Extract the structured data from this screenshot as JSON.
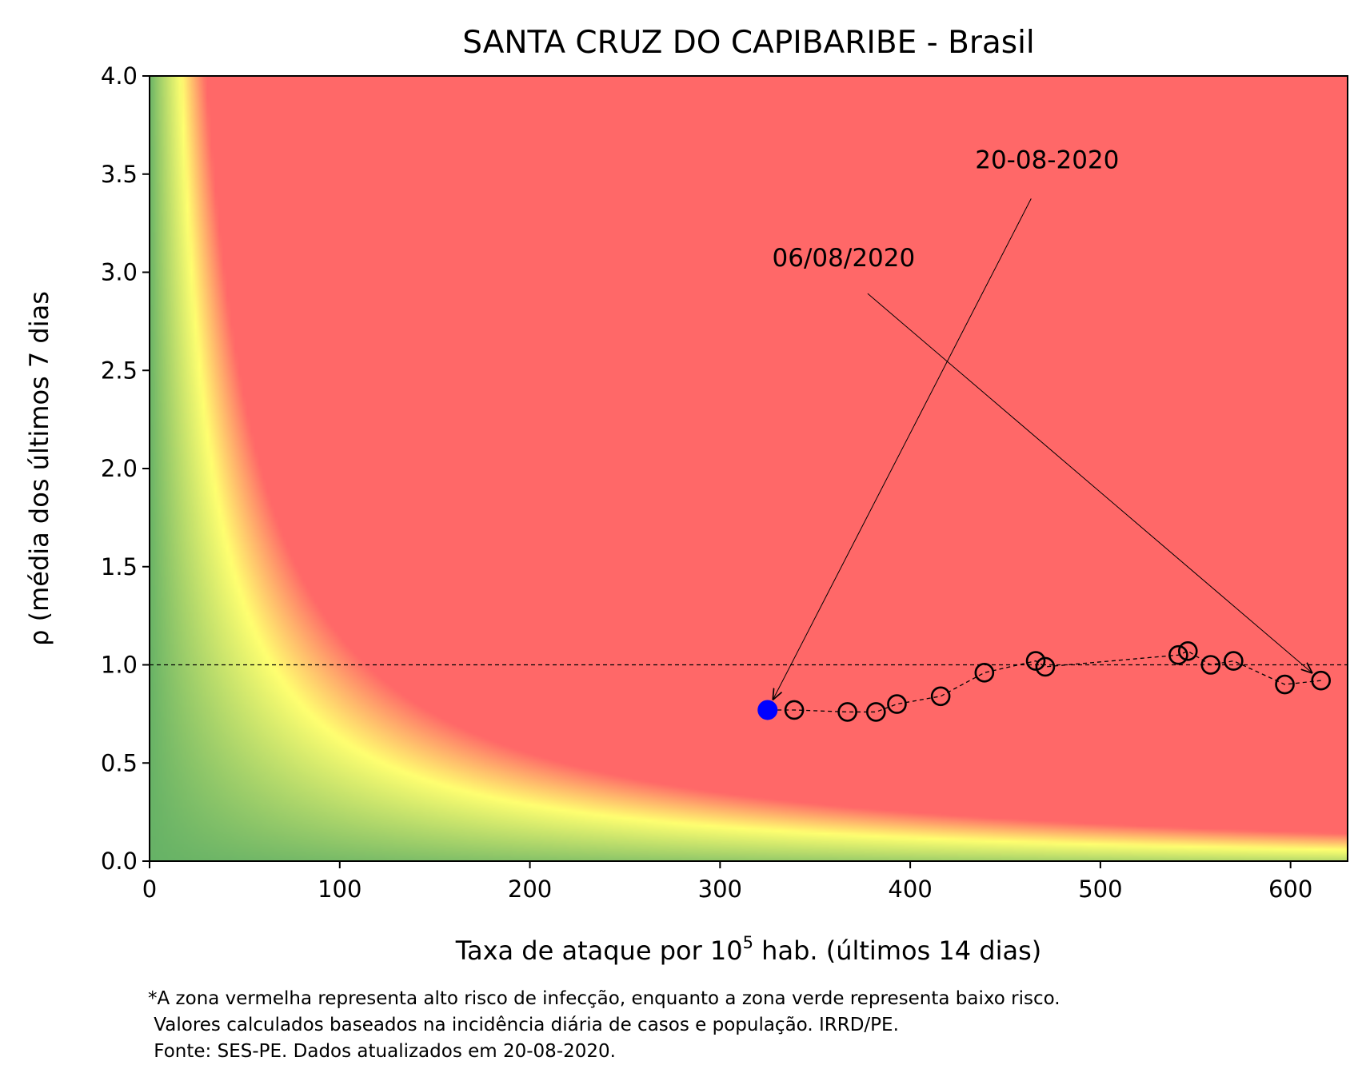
{
  "chart_data": {
    "type": "scatter",
    "title": "SANTA CRUZ DO CAPIBARIBE - Brasil",
    "xlabel_prefix": "Taxa de ataque por 10",
    "xlabel_sup": "5",
    "xlabel_suffix": " hab. (últimos 14 dias)",
    "ylabel": "ρ (média dos últimos 7 dias",
    "xlim": [
      0,
      630
    ],
    "ylim": [
      0,
      4.0
    ],
    "xticks": [
      0,
      100,
      200,
      300,
      400,
      500,
      600
    ],
    "xtick_labels": [
      "0",
      "100",
      "200",
      "300",
      "400",
      "500",
      "600"
    ],
    "yticks": [
      0.0,
      0.5,
      1.0,
      1.5,
      2.0,
      2.5,
      3.0,
      3.5,
      4.0
    ],
    "ytick_labels": [
      "0.0",
      "0.5",
      "1.0",
      "1.5",
      "2.0",
      "2.5",
      "3.0",
      "3.5",
      "4.0"
    ],
    "reference_line_y": 1.0,
    "background": "risk heatmap: green (low) → yellow → red (high), boundary rho × attack-rate ≈ constant",
    "colors": {
      "red": "#ff6868",
      "yellow": "#ffff70",
      "green": "#66b266",
      "current_point": "#0000ff"
    },
    "series": [
      {
        "x": [
          616,
          597,
          570,
          558,
          546,
          541,
          471,
          466,
          439,
          416,
          393,
          382,
          367,
          339,
          325
        ],
        "y": [
          0.92,
          0.9,
          1.02,
          1.0,
          1.07,
          1.05,
          0.99,
          1.02,
          0.96,
          0.84,
          0.8,
          0.76,
          0.76,
          0.77,
          0.77
        ]
      }
    ],
    "annotations": [
      {
        "text": "20-08-2020",
        "text_at": [
          472,
          3.53
        ],
        "points_to": [
          325,
          0.77
        ]
      },
      {
        "text": "06/08/2020",
        "text_at": [
          365,
          3.03
        ],
        "points_to": [
          616,
          0.92
        ]
      }
    ]
  },
  "footnote": {
    "line1": "*A zona vermelha representa alto risco de infecção, enquanto a zona verde representa baixo risco.",
    "line2": " Valores calculados baseados na incidência diária de casos e população. IRRD/PE.",
    "line3": " Fonte: SES-PE. Dados atualizados em 20-08-2020."
  }
}
